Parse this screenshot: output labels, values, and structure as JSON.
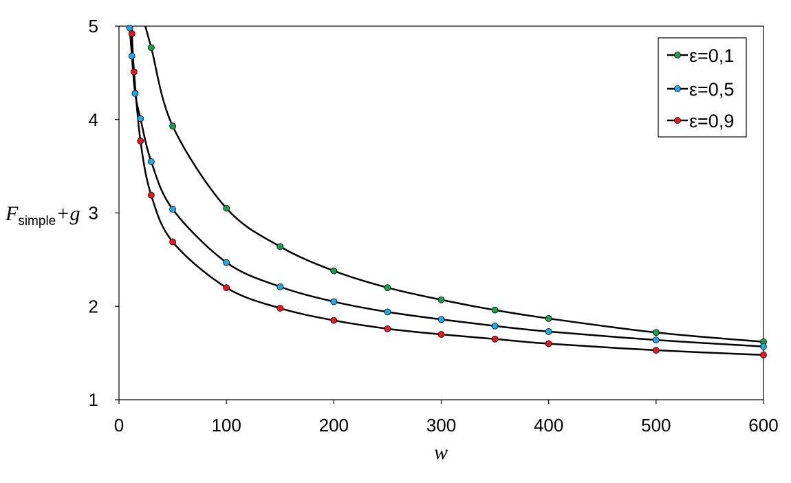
{
  "chart_data": {
    "type": "scatter",
    "xlabel": "w",
    "ylabel": {
      "base": "F",
      "subscript": "simple",
      "suffix": "+g"
    },
    "xlim": [
      0,
      600
    ],
    "ylim": [
      1,
      5
    ],
    "xticks": [
      "0",
      "100",
      "200",
      "300",
      "400",
      "500",
      "600"
    ],
    "yticks": [
      "1",
      "2",
      "3",
      "4",
      "5"
    ],
    "grid": false,
    "legend_position": "top-right",
    "series": [
      {
        "name": "ε=0,1",
        "color": "#1a9e50",
        "line": true,
        "points": [
          [
            30,
            4.77
          ],
          [
            50,
            3.93
          ],
          [
            100,
            3.05
          ],
          [
            150,
            2.64
          ],
          [
            200,
            2.38
          ],
          [
            250,
            2.2
          ],
          [
            300,
            2.07
          ],
          [
            350,
            1.96
          ],
          [
            400,
            1.87
          ],
          [
            500,
            1.72
          ],
          [
            600,
            1.62
          ]
        ]
      },
      {
        "name": "ε=0,5",
        "color": "#1eaae6",
        "line": true,
        "points": [
          [
            10,
            4.98
          ],
          [
            12,
            4.68
          ],
          [
            15,
            4.28
          ],
          [
            20,
            4.01
          ],
          [
            30,
            3.55
          ],
          [
            50,
            3.04
          ],
          [
            100,
            2.47
          ],
          [
            150,
            2.21
          ],
          [
            200,
            2.05
          ],
          [
            250,
            1.94
          ],
          [
            300,
            1.86
          ],
          [
            350,
            1.79
          ],
          [
            400,
            1.73
          ],
          [
            500,
            1.64
          ],
          [
            600,
            1.57
          ]
        ]
      },
      {
        "name": "ε=0,9",
        "color": "#e6191e",
        "line": true,
        "points": [
          [
            12,
            4.92
          ],
          [
            14,
            4.51
          ],
          [
            20,
            3.77
          ],
          [
            30,
            3.19
          ],
          [
            50,
            2.69
          ],
          [
            100,
            2.2
          ],
          [
            150,
            1.98
          ],
          [
            200,
            1.85
          ],
          [
            250,
            1.76
          ],
          [
            300,
            1.7
          ],
          [
            350,
            1.65
          ],
          [
            400,
            1.6
          ],
          [
            500,
            1.53
          ],
          [
            600,
            1.48
          ]
        ]
      }
    ]
  }
}
